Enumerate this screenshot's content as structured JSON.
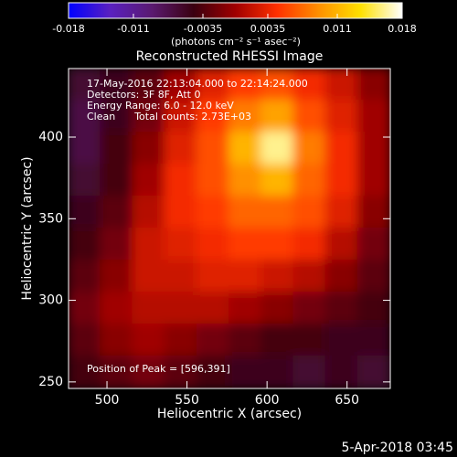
{
  "chart_data": {
    "type": "heatmap",
    "title": "Reconstructed RHESSI Image",
    "x_label": "Heliocentric X (arcsec)",
    "y_label": "Heliocentric Y (arcsec)",
    "colorbar_label": "(photons cm⁻² s⁻¹ asec⁻²)",
    "colorbar_lim": [
      -0.018,
      0.018
    ],
    "colorbar_ticks": [
      -0.018,
      -0.011,
      -0.0035,
      0.0035,
      0.011,
      0.018
    ],
    "colormap": [
      "#0000ff",
      "#5a20c0",
      "#5a1a70",
      "#3a0010",
      "#a00000",
      "#ff3000",
      "#ff9000",
      "#ffe000",
      "#ffffff"
    ],
    "annotations": [
      "17-May-2016 22:13:04.000 to 22:14:24.000",
      "Detectors: 3F 8F, Att 0",
      "Energy Range: 6.0 - 12.0 keV",
      "Clean      Total counts: 2.73E+03"
    ],
    "peak_label": "Position of Peak = [596,391]",
    "timestamp": "5-Apr-2018 03:45",
    "xlim": [
      476,
      677
    ],
    "ylim": [
      246,
      442
    ],
    "xticks": [
      500,
      550,
      600,
      650
    ],
    "yticks": [
      250,
      300,
      350,
      400
    ],
    "z": [
      [
        -0.006,
        -0.005,
        -0.003,
        0,
        0.003,
        0.005,
        0.006,
        0.004,
        0.002,
        -0.001
      ],
      [
        -0.007,
        -0.005,
        -0.002,
        0.002,
        0.005,
        0.008,
        0.01,
        0.006,
        0.003,
        0
      ],
      [
        -0.007,
        -0.004,
        -0.001,
        0.003,
        0.006,
        0.011,
        0.016,
        0.008,
        0.004,
        0
      ],
      [
        -0.006,
        -0.004,
        0,
        0.004,
        0.006,
        0.009,
        0.011,
        0.007,
        0.004,
        0
      ],
      [
        -0.005,
        -0.003,
        0.001,
        0.004,
        0.005,
        0.007,
        0.007,
        0.006,
        0.003,
        -0.001
      ],
      [
        -0.004,
        -0.002,
        0.002,
        0.003,
        0.004,
        0.005,
        0.005,
        0.004,
        0.001,
        -0.002
      ],
      [
        -0.003,
        -0.001,
        0.002,
        0.002,
        0.003,
        0.003,
        0.002,
        0.001,
        -0.001,
        -0.003
      ],
      [
        -0.002,
        0,
        0.001,
        0.001,
        0.001,
        0,
        -0.001,
        -0.002,
        -0.003,
        -0.004
      ],
      [
        -0.003,
        -0.001,
        0,
        -0.001,
        -0.002,
        -0.003,
        -0.004,
        -0.004,
        -0.005,
        -0.005
      ],
      [
        -0.004,
        -0.003,
        -0.002,
        -0.003,
        -0.004,
        -0.005,
        -0.005,
        -0.006,
        -0.005,
        -0.006
      ]
    ]
  }
}
